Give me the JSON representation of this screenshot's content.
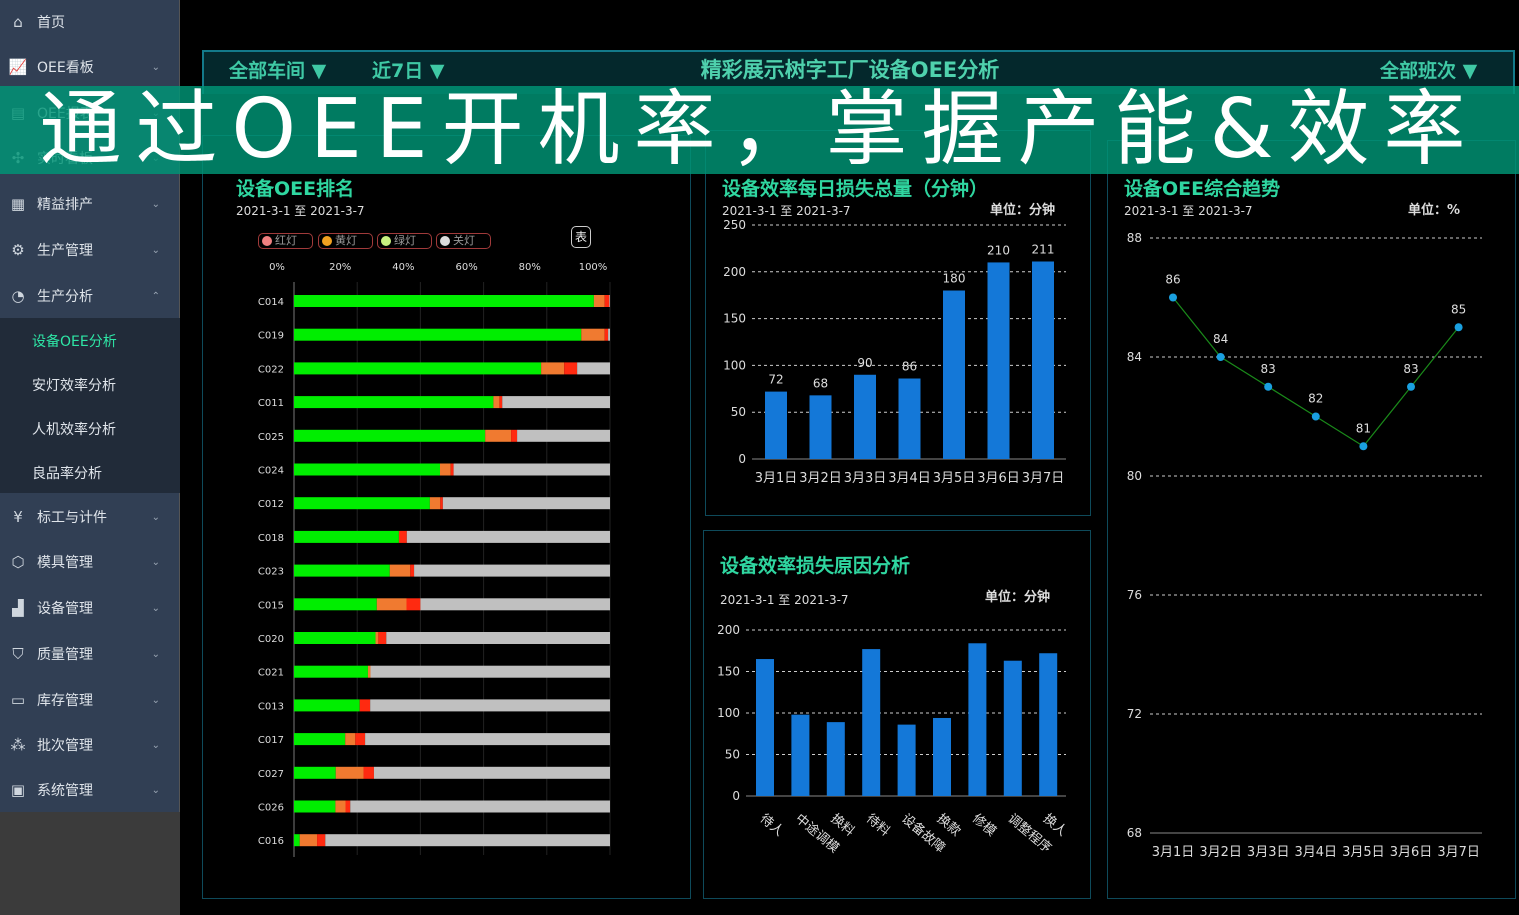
{
  "sidebar": {
    "items": [
      {
        "label": "首页",
        "icon": "home-icon",
        "chevron": ""
      },
      {
        "label": "OEE看板",
        "icon": "chart-icon",
        "chevron": "⌄"
      },
      {
        "label": "OEE报表",
        "icon": "report-icon",
        "chevron": "⌄"
      },
      {
        "label": "实时看板",
        "icon": "fan-icon",
        "chevron": "⌄"
      },
      {
        "label": "精益排产",
        "icon": "schedule-icon",
        "chevron": "⌄"
      },
      {
        "label": "生产管理",
        "icon": "production-icon",
        "chevron": "⌄"
      },
      {
        "label": "生产分析",
        "icon": "pie-icon",
        "chevron": "⌃"
      },
      {
        "label": "标工与计件",
        "icon": "yen-icon",
        "chevron": "⌄"
      },
      {
        "label": "模具管理",
        "icon": "box-icon",
        "chevron": "⌄"
      },
      {
        "label": "设备管理",
        "icon": "equipment-icon",
        "chevron": "⌄"
      },
      {
        "label": "质量管理",
        "icon": "shield-icon",
        "chevron": "⌄"
      },
      {
        "label": "库存管理",
        "icon": "inventory-icon",
        "chevron": "⌄"
      },
      {
        "label": "批次管理",
        "icon": "batch-icon",
        "chevron": "⌄"
      },
      {
        "label": "系统管理",
        "icon": "monitor-icon",
        "chevron": "⌄"
      }
    ],
    "sub_items": [
      "设备OEE分析",
      "安灯效率分析",
      "人机效率分析",
      "良品率分析"
    ],
    "active_sub": "设备OEE分析"
  },
  "header": {
    "workshop": "全部车间 ▼",
    "period": "近7日 ▼",
    "title": "精彩展示树字工厂设备OEE分析",
    "shift": "全部班次 ▼"
  },
  "banner": "通过OEE开机率，掌握产能&效率",
  "panels": {
    "ranking": {
      "title": "设备OEE排名",
      "date": "2021-3-1 至 2021-3-7",
      "legend": [
        "红灯",
        "黄灯",
        "绿灯",
        "关灯"
      ],
      "table_button": "表"
    },
    "daily_loss": {
      "title": "设备效率每日损失总量（分钟）",
      "date": "2021-3-1 至 2021-3-7",
      "unit": "单位：分钟"
    },
    "loss_reason": {
      "title": "设备效率损失原因分析",
      "date": "2021-3-1 至 2021-3-7",
      "unit": "单位：分钟"
    },
    "trend": {
      "title": "设备OEE综合趋势",
      "date": "2021-3-1 至 2021-3-7",
      "unit": "单位：%"
    }
  },
  "colors": {
    "green": "#00ee00",
    "orange": "#f07a30",
    "red": "#ff2a10",
    "gray": "#c0c0c0",
    "blue": "#1478d8",
    "accent": "#2fd6a0",
    "line": "#1a8a1a",
    "point": "#1aa0e0"
  },
  "chart_data": [
    {
      "type": "bar",
      "orientation": "horizontal",
      "stacked": true,
      "categories": [
        "C014",
        "C019",
        "C022",
        "C011",
        "C025",
        "C024",
        "C012",
        "C018",
        "C023",
        "C015",
        "C020",
        "C021",
        "C013",
        "C017",
        "C027",
        "C026",
        "C016"
      ],
      "xticks": [
        "0%",
        "20%",
        "40%",
        "60%",
        "80%",
        "100%"
      ],
      "xlim": [
        0,
        100
      ],
      "series": [
        {
          "name": "绿灯",
          "values": [
            94.9,
            90.9,
            78.2,
            63.1,
            60.5,
            46.2,
            43.0,
            33.2,
            30.3,
            26.2,
            25.8,
            23.4,
            20.8,
            16.2,
            13.2,
            13.1,
            1.8
          ]
        },
        {
          "name": "黄灯",
          "values": [
            3.4,
            7.4,
            7.3,
            1.9,
            8.2,
            3.4,
            3.3,
            0,
            6.5,
            9.4,
            0.9,
            0.8,
            0,
            3.2,
            8.8,
            3.2,
            5.5
          ]
        },
        {
          "name": "红灯",
          "values": [
            1.5,
            1.1,
            4.1,
            0.9,
            1.9,
            0.9,
            0.8,
            2.5,
            1.2,
            4.4,
            2.5,
            0,
            3.3,
            3.1,
            3.3,
            1.5,
            2.6
          ]
        },
        {
          "name": "关灯",
          "values": [
            0.2,
            0.6,
            10.4,
            34.1,
            29.4,
            49.5,
            52.9,
            64.3,
            62.0,
            60.0,
            70.8,
            75.8,
            75.9,
            77.5,
            74.7,
            82.2,
            90.1
          ]
        }
      ]
    },
    {
      "type": "bar",
      "categories": [
        "3月1日",
        "3月2日",
        "3月3日",
        "3月4日",
        "3月5日",
        "3月6日",
        "3月7日"
      ],
      "values": [
        72,
        68,
        90,
        86,
        180,
        210,
        211
      ],
      "yticks": [
        0,
        50,
        100,
        150,
        200,
        250
      ],
      "ylim": [
        0,
        250
      ],
      "grid": true
    },
    {
      "type": "bar",
      "categories": [
        "待人",
        "中途调模",
        "换料",
        "待料",
        "设备故障",
        "换款",
        "修模",
        "调整程序",
        "换人"
      ],
      "values": [
        165,
        98,
        89,
        177,
        86,
        94,
        184,
        163,
        172
      ],
      "yticks": [
        0,
        50,
        100,
        150,
        200
      ],
      "ylim": [
        0,
        200
      ],
      "grid": true
    },
    {
      "type": "line",
      "categories": [
        "3月1日",
        "3月2日",
        "3月3日",
        "3月4日",
        "3月5日",
        "3月6日",
        "3月7日"
      ],
      "values": [
        86,
        84,
        83,
        82,
        81,
        83,
        85
      ],
      "yticks": [
        68,
        72,
        76,
        80,
        84,
        88
      ],
      "ylim": [
        68,
        88
      ],
      "grid": true
    }
  ]
}
